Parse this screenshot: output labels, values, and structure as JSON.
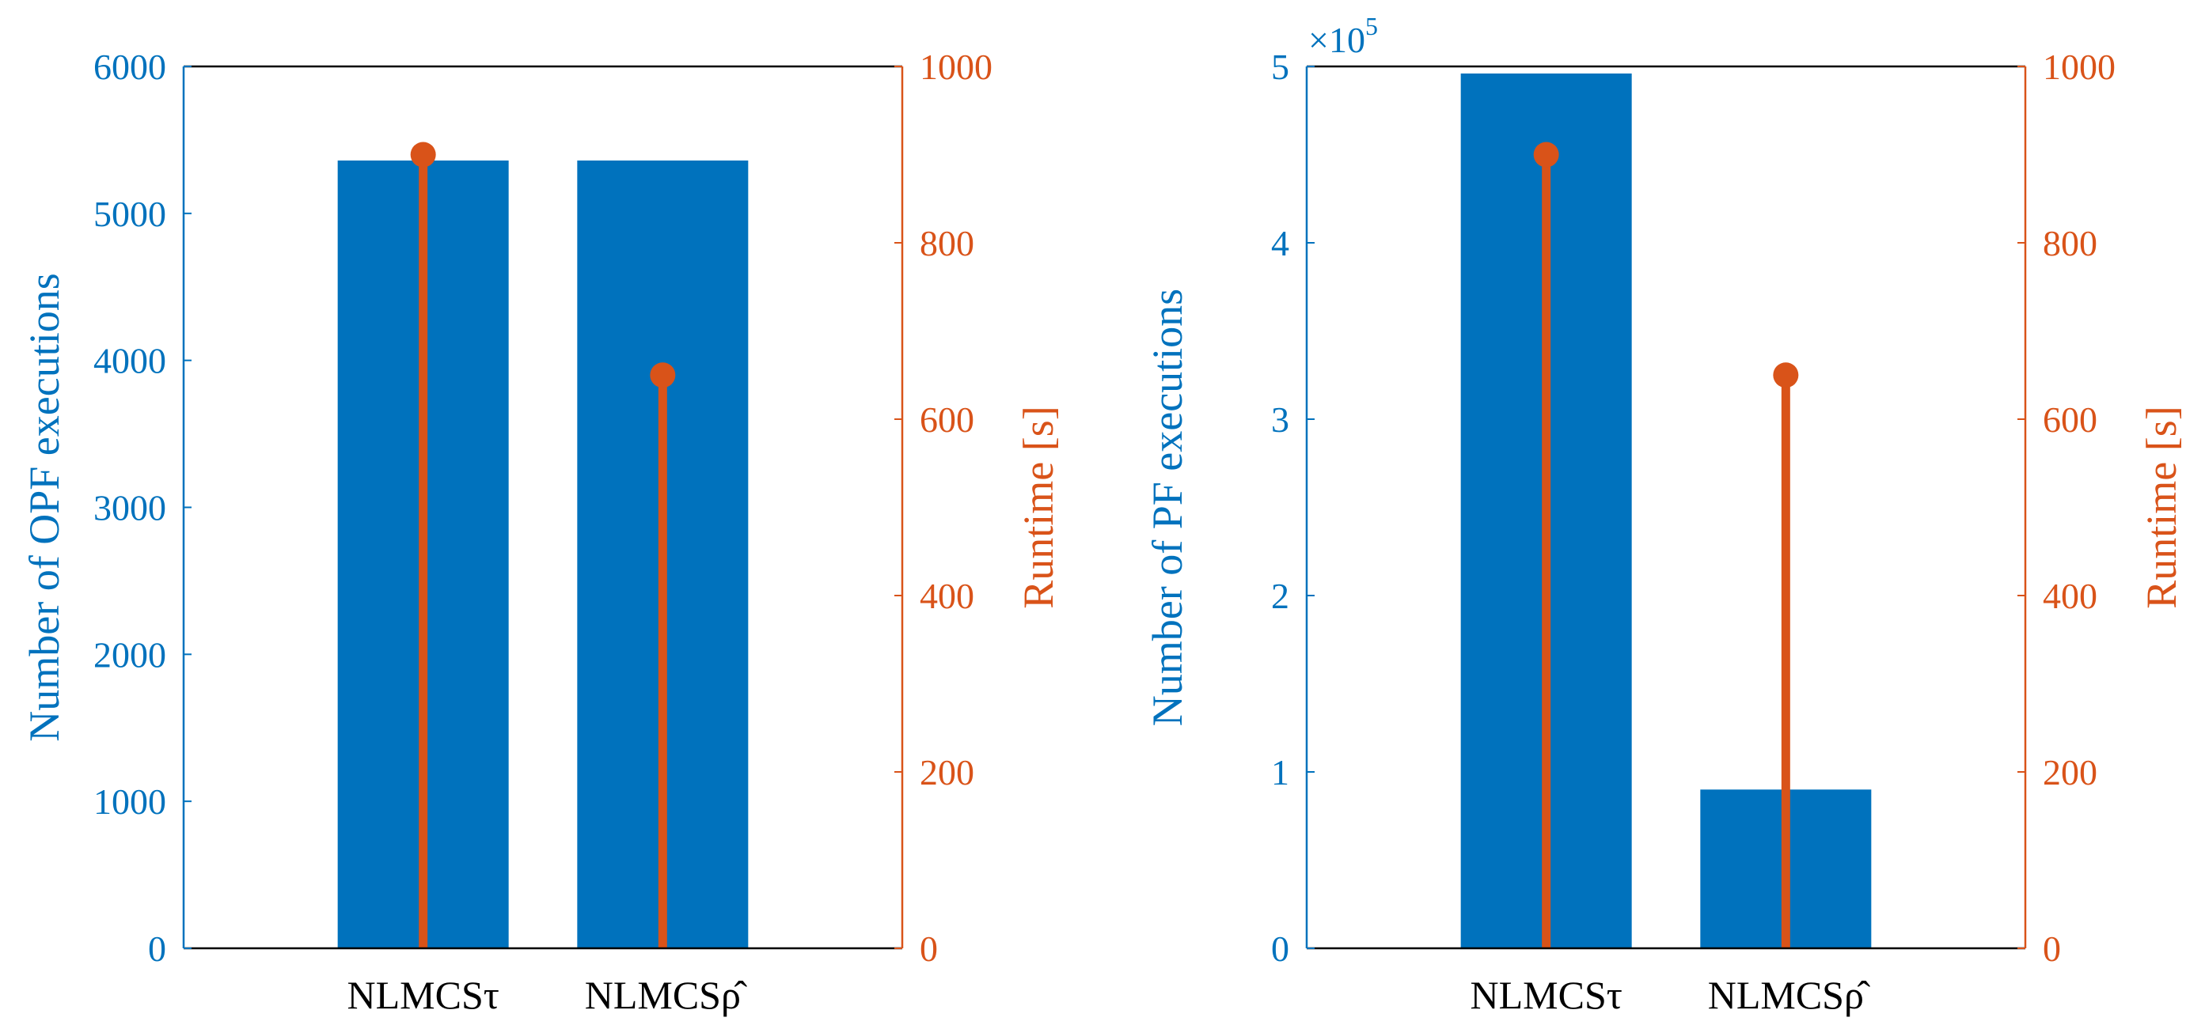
{
  "colors": {
    "bar": "#0072bd",
    "stem": "#d95319",
    "axis": "#000000"
  },
  "chart_data": [
    {
      "type": "bar",
      "categories": [
        "NLMCSτ",
        "NLMCSρ̂"
      ],
      "series": [
        {
          "name": "Number of OPF executions",
          "axis": "left",
          "values": [
            5360,
            5360
          ]
        },
        {
          "name": "Runtime [s]",
          "axis": "right",
          "style": "stem",
          "values": [
            900,
            650
          ]
        }
      ],
      "ylabel": "Number of OPF executions",
      "y2label": "Runtime [s]",
      "ylim": [
        0,
        6000
      ],
      "y2lim": [
        0,
        1000
      ],
      "yticks": [
        0,
        1000,
        2000,
        3000,
        4000,
        5000,
        6000
      ],
      "y2ticks": [
        0,
        200,
        400,
        600,
        800,
        1000
      ],
      "ytick_labels": [
        "0",
        "1000",
        "2000",
        "3000",
        "4000",
        "5000",
        "6000"
      ],
      "y2tick_labels": [
        "0",
        "200",
        "400",
        "600",
        "800",
        "1000"
      ],
      "multiplier": "",
      "multiplier_exp": ""
    },
    {
      "type": "bar",
      "categories": [
        "NLMCSτ",
        "NLMCSρ̂"
      ],
      "series": [
        {
          "name": "Number of PF executions",
          "axis": "left",
          "values": [
            4.96,
            0.9
          ]
        },
        {
          "name": "Runtime [s]",
          "axis": "right",
          "style": "stem",
          "values": [
            900,
            650
          ]
        }
      ],
      "ylabel": "Number of PF executions",
      "y2label": "Runtime [s]",
      "ylim": [
        0,
        5
      ],
      "y2lim": [
        0,
        1000
      ],
      "yticks": [
        0,
        1,
        2,
        3,
        4,
        5
      ],
      "y2ticks": [
        0,
        200,
        400,
        600,
        800,
        1000
      ],
      "ytick_labels": [
        "0",
        "1",
        "2",
        "3",
        "4",
        "5"
      ],
      "y2tick_labels": [
        "0",
        "200",
        "400",
        "600",
        "800",
        "1000"
      ],
      "multiplier": "×10",
      "multiplier_exp": "5"
    }
  ]
}
